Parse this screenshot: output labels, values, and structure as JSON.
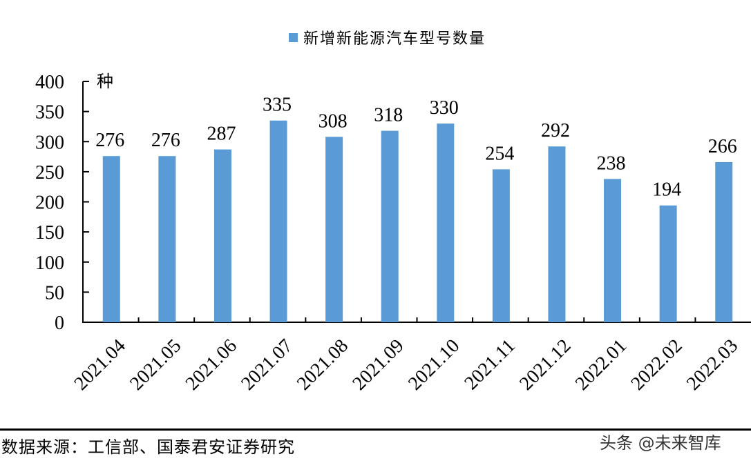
{
  "legend": {
    "label": "新增新能源汽车型号数量",
    "color": "#5b9bd5"
  },
  "unit_label": "种",
  "footer": {
    "source": "数据来源：工信部、国泰君安证券研究",
    "watermark": "头条 @未来智库"
  },
  "chart_data": {
    "type": "bar",
    "title": "",
    "categories": [
      "2021.04",
      "2021.05",
      "2021.06",
      "2021.07",
      "2021.08",
      "2021.09",
      "2021.10",
      "2021.11",
      "2021.12",
      "2022.01",
      "2022.02",
      "2022.03"
    ],
    "series": [
      {
        "name": "新增新能源汽车型号数量",
        "values": [
          276,
          276,
          287,
          335,
          308,
          318,
          330,
          254,
          292,
          238,
          194,
          266
        ],
        "color": "#5b9bd5"
      }
    ],
    "xlabel": "",
    "ylabel": "种",
    "ylim": [
      0,
      400
    ],
    "yticks": [
      0,
      50,
      100,
      150,
      200,
      250,
      300,
      350,
      400
    ],
    "data_labels": true,
    "grid": false,
    "legend_position": "top"
  }
}
